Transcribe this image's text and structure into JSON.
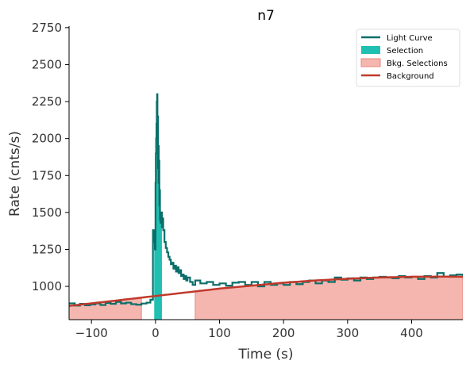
{
  "chart_data": {
    "type": "line",
    "title": "n7",
    "xlabel": "Time (s)",
    "ylabel": "Rate (cnts/s)",
    "xlim": [
      -135,
      480
    ],
    "ylim": [
      775,
      2760
    ],
    "xticks": [
      -100,
      0,
      100,
      200,
      300,
      400
    ],
    "yticks": [
      1000,
      1250,
      1500,
      1750,
      2000,
      2250,
      2500,
      2750
    ],
    "xtick_labels": [
      "−100",
      "0",
      "100",
      "200",
      "300",
      "400"
    ],
    "ytick_labels": [
      "1000",
      "1250",
      "1500",
      "1750",
      "2000",
      "2250",
      "2500",
      "2750"
    ],
    "grid": false,
    "legend_position": "top-right",
    "legend": [
      {
        "label": "Light Curve",
        "kind": "line",
        "color": "#0b6e69"
      },
      {
        "label": "Selection",
        "kind": "patch",
        "color": "#1fbfb2"
      },
      {
        "label": "Bkg. Selections",
        "kind": "patch",
        "color": "#f4b6ae"
      },
      {
        "label": "Background",
        "kind": "line",
        "color": "#c0392b"
      }
    ],
    "colors": {
      "light_curve": "#0b6e69",
      "selection": "#1fbfb2",
      "bkg_fill": "#f4b6ae",
      "bkg_edge": "#e8877c",
      "background": "#c0392b"
    },
    "selection": [
      -2,
      10
    ],
    "bkg_selections": [
      [
        -135,
        -22
      ],
      [
        62,
        480
      ]
    ],
    "background_poly": {
      "x": [
        -135,
        -50,
        0,
        50,
        100,
        150,
        200,
        250,
        300,
        350,
        400,
        450,
        480
      ],
      "y": [
        868,
        910,
        935,
        960,
        985,
        1005,
        1025,
        1040,
        1052,
        1060,
        1065,
        1066,
        1065
      ]
    },
    "light_curve": {
      "x": [
        -135,
        -126,
        -118,
        -110,
        -102,
        -94,
        -86,
        -78,
        -70,
        -62,
        -54,
        -46,
        -38,
        -30,
        -22,
        -14,
        -8,
        -4,
        -2,
        -1,
        0,
        0.5,
        1,
        1.5,
        2,
        2.5,
        3,
        3.5,
        4,
        4.5,
        5,
        5.5,
        6,
        6.5,
        7,
        7.5,
        8,
        9,
        10,
        11,
        12,
        14,
        16,
        18,
        20,
        22,
        24,
        26,
        28,
        30,
        32,
        34,
        36,
        38,
        40,
        42,
        44,
        46,
        48,
        50,
        54,
        58,
        62,
        70,
        80,
        90,
        100,
        110,
        120,
        130,
        140,
        150,
        160,
        170,
        180,
        190,
        200,
        210,
        220,
        230,
        240,
        250,
        260,
        270,
        280,
        290,
        300,
        310,
        320,
        330,
        340,
        350,
        360,
        370,
        380,
        390,
        400,
        410,
        420,
        430,
        440,
        450,
        460,
        470,
        480
      ],
      "y": [
        885,
        870,
        882,
        872,
        878,
        885,
        874,
        888,
        882,
        895,
        885,
        890,
        880,
        876,
        884,
        890,
        910,
        1380,
        1300,
        1250,
        1700,
        1900,
        2000,
        2100,
        2250,
        2300,
        2000,
        2150,
        1800,
        1950,
        1700,
        1850,
        1550,
        1650,
        1450,
        1500,
        1430,
        1500,
        1400,
        1460,
        1380,
        1300,
        1260,
        1230,
        1200,
        1180,
        1150,
        1160,
        1120,
        1140,
        1100,
        1130,
        1090,
        1110,
        1070,
        1080,
        1050,
        1070,
        1040,
        1060,
        1030,
        1010,
        1040,
        1020,
        1030,
        1010,
        1020,
        1005,
        1025,
        1030,
        1010,
        1030,
        1000,
        1030,
        1010,
        1020,
        1010,
        1030,
        1015,
        1030,
        1040,
        1020,
        1040,
        1030,
        1060,
        1045,
        1055,
        1040,
        1060,
        1050,
        1060,
        1065,
        1060,
        1055,
        1070,
        1060,
        1065,
        1050,
        1070,
        1060,
        1090,
        1065,
        1075,
        1080,
        1070
      ]
    }
  }
}
